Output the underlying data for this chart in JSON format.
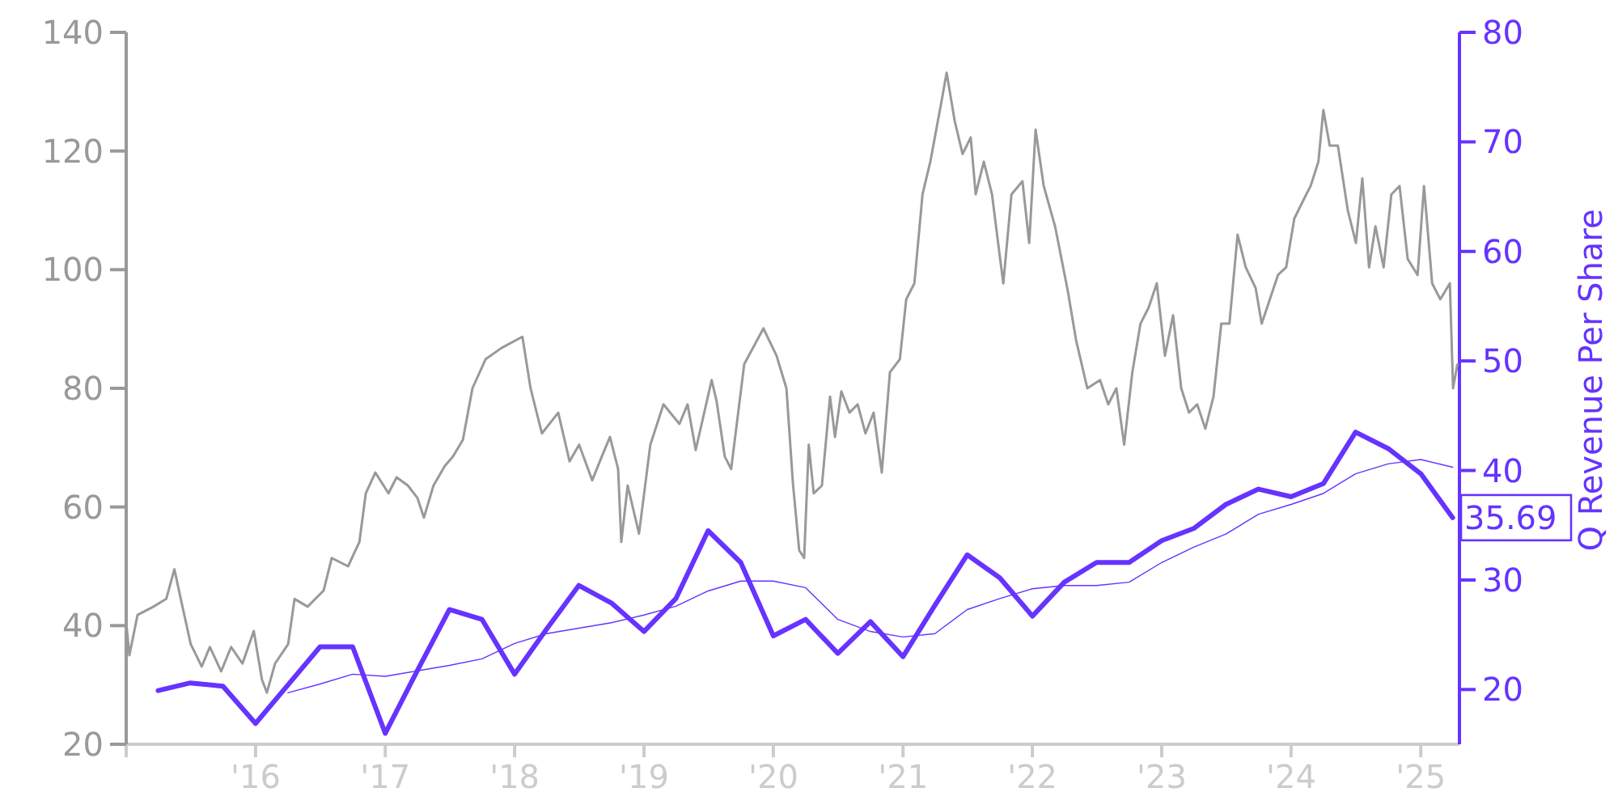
{
  "chart_data": {
    "type": "line",
    "y2label": "Q Revenue Per Share",
    "xlim": [
      "2015-01-01",
      "2025-04-20"
    ],
    "xticks": [
      {
        "value": "2015-01-01",
        "label": null
      },
      {
        "value": "2016-01-01",
        "label": "'16"
      },
      {
        "value": "2017-01-01",
        "label": "'17"
      },
      {
        "value": "2018-01-01",
        "label": "'18"
      },
      {
        "value": "2019-01-01",
        "label": "'19"
      },
      {
        "value": "2020-01-01",
        "label": "'20"
      },
      {
        "value": "2021-01-01",
        "label": "'21"
      },
      {
        "value": "2022-01-01",
        "label": "'22"
      },
      {
        "value": "2023-01-01",
        "label": "'23"
      },
      {
        "value": "2024-01-01",
        "label": "'24"
      },
      {
        "value": "2025-01-01",
        "label": "'25"
      }
    ],
    "ylim": [
      20,
      140
    ],
    "yticks": [
      20,
      40,
      60,
      80,
      100,
      120,
      140
    ],
    "y2lim": [
      15,
      80
    ],
    "y2ticks": [
      20,
      30,
      40,
      50,
      60,
      70,
      80
    ],
    "grid": false,
    "marker": "none",
    "line_style": "solid",
    "series": [
      {
        "color": "#999999",
        "x": [
          "2015-01-01",
          "2015-01-10",
          "2015-02-02",
          "2015-03-19",
          "2015-04-24",
          "2015-05-17",
          "2015-06-04",
          "2015-07-02",
          "2015-08-02",
          "2015-08-25",
          "2015-09-26",
          "2015-10-24",
          "2015-11-25",
          "2015-12-27",
          "2016-01-19",
          "2016-02-02",
          "2016-02-25",
          "2016-04-02",
          "2016-04-20",
          "2016-05-27",
          "2016-07-11",
          "2016-08-03",
          "2016-09-18",
          "2016-10-20",
          "2016-11-07",
          "2016-12-04",
          "2017-01-10",
          "2017-02-02",
          "2017-03-06",
          "2017-04-02",
          "2017-04-20",
          "2017-05-17",
          "2017-06-18",
          "2017-07-11",
          "2017-08-08",
          "2017-09-04",
          "2017-10-11",
          "2017-11-25",
          "2018-01-23",
          "2018-02-15",
          "2018-03-19",
          "2018-05-04",
          "2018-06-05",
          "2018-07-02",
          "2018-08-08",
          "2018-09-04",
          "2018-09-27",
          "2018-10-20",
          "2018-10-29",
          "2018-11-16",
          "2018-12-18",
          "2019-01-19",
          "2019-02-25",
          "2019-04-11",
          "2019-05-04",
          "2019-05-27",
          "2019-07-11",
          "2019-07-25",
          "2019-08-17",
          "2019-09-04",
          "2019-10-11",
          "2019-12-04",
          "2020-01-10",
          "2020-02-07",
          "2020-02-25",
          "2020-03-14",
          "2020-03-28",
          "2020-04-10",
          "2020-04-24",
          "2020-05-17",
          "2020-06-09",
          "2020-06-23",
          "2020-07-11",
          "2020-08-03",
          "2020-08-26",
          "2020-09-17",
          "2020-10-10",
          "2020-11-02",
          "2020-11-25",
          "2020-12-23",
          "2021-01-10",
          "2021-02-02",
          "2021-02-25",
          "2021-03-19",
          "2021-04-20",
          "2021-05-04",
          "2021-05-27",
          "2021-06-18",
          "2021-07-11",
          "2021-07-25",
          "2021-08-17",
          "2021-09-09",
          "2021-10-02",
          "2021-10-11",
          "2021-11-03",
          "2021-12-04",
          "2021-12-23",
          "2022-01-10",
          "2022-02-02",
          "2022-03-06",
          "2022-04-11",
          "2022-05-04",
          "2022-06-05",
          "2022-07-11",
          "2022-08-03",
          "2022-08-26",
          "2022-09-17",
          "2022-10-10",
          "2022-11-02",
          "2022-11-25",
          "2022-12-18",
          "2023-01-10",
          "2023-02-02",
          "2023-02-25",
          "2023-03-19",
          "2023-04-11",
          "2023-05-04",
          "2023-05-27",
          "2023-06-18",
          "2023-07-11",
          "2023-08-03",
          "2023-08-26",
          "2023-09-23",
          "2023-10-10",
          "2023-11-02",
          "2023-11-25",
          "2023-12-18",
          "2024-01-10",
          "2024-02-02",
          "2024-02-25",
          "2024-03-18",
          "2024-04-01",
          "2024-04-19",
          "2024-05-12",
          "2024-06-09",
          "2024-07-02",
          "2024-07-20",
          "2024-08-08",
          "2024-08-26",
          "2024-09-18",
          "2024-10-10",
          "2024-11-02",
          "2024-11-25",
          "2024-12-23",
          "2025-01-10",
          "2025-02-02",
          "2025-02-25",
          "2025-03-24",
          "2025-04-02",
          "2025-04-14"
        ],
        "values": [
          40.5,
          35,
          41.8,
          43.2,
          44.5,
          49.5,
          44.5,
          36.9,
          33.1,
          36.4,
          32.3,
          36.4,
          33.6,
          39.1,
          30.9,
          28.7,
          33.6,
          36.9,
          44.5,
          43.2,
          45.9,
          51.4,
          50,
          54.1,
          62.3,
          65.8,
          62.3,
          65,
          63.6,
          61.5,
          58.2,
          63.6,
          66.9,
          68.5,
          71.3,
          80,
          84.9,
          86.8,
          88.7,
          80,
          72.4,
          75.9,
          67.7,
          70.5,
          64.5,
          68.5,
          71.8,
          66.4,
          54.1,
          63.6,
          55.5,
          70.5,
          77.3,
          74,
          77.3,
          69.6,
          81.4,
          77.8,
          68.5,
          66.4,
          84.1,
          90.1,
          85.5,
          80,
          64.2,
          52.7,
          51.4,
          70.5,
          62.3,
          63.6,
          78.6,
          71.8,
          79.5,
          75.9,
          77.3,
          72.4,
          75.9,
          65.8,
          82.7,
          84.9,
          95,
          97.7,
          112.7,
          118.2,
          128.5,
          133.2,
          125,
          119.5,
          122.3,
          112.7,
          118.2,
          112.7,
          101.8,
          97.7,
          112.7,
          114.9,
          104.5,
          123.6,
          114.1,
          107.3,
          96.4,
          88.2,
          80,
          81.4,
          77.3,
          80,
          70.5,
          82.7,
          90.9,
          93.6,
          97.7,
          85.5,
          92.3,
          80,
          75.9,
          77.3,
          73.2,
          78.6,
          90.9,
          90.9,
          105.9,
          100.4,
          96.9,
          90.9,
          95,
          99.1,
          100.4,
          108.6,
          111.4,
          114.1,
          118.2,
          126.9,
          120.9,
          120.9,
          110,
          104.5,
          115.4,
          100.4,
          107.3,
          100.4,
          112.7,
          114.1,
          101.8,
          99.1,
          114.1,
          97.7,
          95,
          97.7,
          80,
          84
        ]
      },
      {
        "color": "#6633ff",
        "axis": "y2",
        "x": [
          "2015-04-01",
          "2015-07-01",
          "2015-10-01",
          "2016-01-01",
          "2016-04-01",
          "2016-07-01",
          "2016-10-01",
          "2017-01-01",
          "2017-04-01",
          "2017-07-01",
          "2017-10-01",
          "2018-01-01",
          "2018-04-01",
          "2018-07-01",
          "2018-10-01",
          "2019-01-01",
          "2019-04-01",
          "2019-07-01",
          "2019-10-01",
          "2020-01-01",
          "2020-04-01",
          "2020-07-01",
          "2020-10-01",
          "2021-01-01",
          "2021-04-01",
          "2021-07-01",
          "2021-10-01",
          "2022-01-01",
          "2022-04-01",
          "2022-07-01",
          "2022-10-01",
          "2023-01-01",
          "2023-04-01",
          "2023-07-01",
          "2023-10-01",
          "2024-01-01",
          "2024-04-01",
          "2024-07-01",
          "2024-10-01",
          "2025-01-01",
          "2025-04-01"
        ],
        "values": [
          19.9,
          20.6,
          20.3,
          16.9,
          20.4,
          23.9,
          23.9,
          16.0,
          21.7,
          27.3,
          26.4,
          21.4,
          25.5,
          29.5,
          27.9,
          25.3,
          28.3,
          34.5,
          31.6,
          24.9,
          26.4,
          23.3,
          26.2,
          23.0,
          27.7,
          32.3,
          30.2,
          26.7,
          29.8,
          31.6,
          31.6,
          33.6,
          34.7,
          36.9,
          38.3,
          37.6,
          38.8,
          43.5,
          42.0,
          39.7,
          35.69
        ],
        "value_labels": [
          null,
          null,
          null,
          null,
          null,
          null,
          null,
          null,
          null,
          null,
          null,
          null,
          null,
          null,
          null,
          null,
          null,
          null,
          null,
          null,
          null,
          null,
          null,
          null,
          null,
          null,
          null,
          null,
          null,
          null,
          null,
          null,
          null,
          null,
          null,
          null,
          null,
          null,
          null,
          null,
          "35.69"
        ]
      },
      {
        "color": "#6633ff",
        "axis": "y2",
        "x": [
          "2016-04-01",
          "2016-07-01",
          "2016-10-01",
          "2017-01-01",
          "2017-04-01",
          "2017-07-01",
          "2017-10-01",
          "2018-01-01",
          "2018-04-01",
          "2018-07-01",
          "2018-10-01",
          "2019-01-01",
          "2019-04-01",
          "2019-07-01",
          "2019-10-01",
          "2020-01-01",
          "2020-04-01",
          "2020-07-01",
          "2020-10-01",
          "2021-01-01",
          "2021-04-01",
          "2021-07-01",
          "2021-10-01",
          "2022-01-01",
          "2022-04-01",
          "2022-07-01",
          "2022-10-01",
          "2023-01-01",
          "2023-04-01",
          "2023-07-01",
          "2023-10-01",
          "2024-01-01",
          "2024-04-01",
          "2024-07-01",
          "2024-10-01",
          "2025-01-01",
          "2025-04-01"
        ],
        "values": [
          19.7,
          20.5,
          21.4,
          21.2,
          21.7,
          22.2,
          22.8,
          24.2,
          25.1,
          25.6,
          26.1,
          26.8,
          27.6,
          29.0,
          29.9,
          29.9,
          29.3,
          26.4,
          25.3,
          24.8,
          25.1,
          27.3,
          28.3,
          29.2,
          29.5,
          29.5,
          29.8,
          31.6,
          33.0,
          34.2,
          36.0,
          36.9,
          37.9,
          39.7,
          40.6,
          41.0,
          40.3
        ]
      }
    ]
  }
}
